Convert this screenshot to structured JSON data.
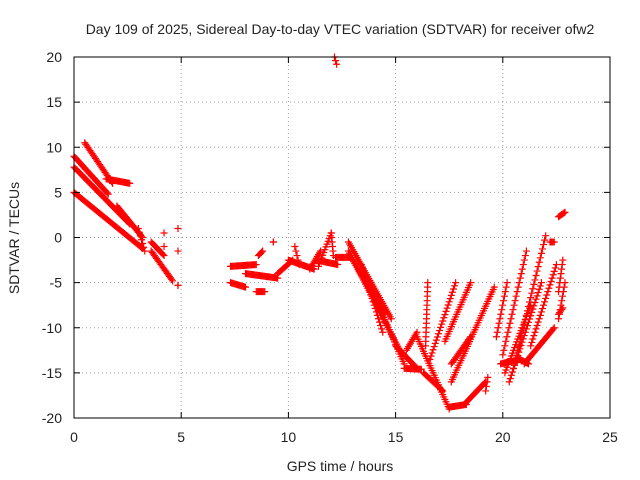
{
  "chart_data": {
    "type": "scatter",
    "title": "Day 109 of 2025, Sidereal Day-to-day VTEC variation (SDTVAR) for receiver ofw2",
    "xlabel": "GPS time / hours",
    "ylabel": "SDTVAR / TECUs",
    "xlim": [
      0,
      25
    ],
    "ylim": [
      -20,
      20
    ],
    "xticks": [
      0,
      5,
      10,
      15,
      20,
      25
    ],
    "yticks": [
      -20,
      -15,
      -10,
      -5,
      0,
      5,
      10,
      15,
      20
    ],
    "grid": true,
    "marker": "+",
    "color": "#ff0000",
    "segments": [
      {
        "from": [
          0.0,
          9.0
        ],
        "to": [
          1.6,
          4.8
        ],
        "step": 0.05
      },
      {
        "from": [
          0.0,
          5.0
        ],
        "to": [
          3.2,
          -1.2
        ],
        "step": 0.05
      },
      {
        "from": [
          0.0,
          7.8
        ],
        "to": [
          2.6,
          1.5
        ],
        "step": 0.05
      },
      {
        "from": [
          0.5,
          10.5
        ],
        "to": [
          1.8,
          6.0
        ],
        "step": 0.05
      },
      {
        "from": [
          1.5,
          6.5
        ],
        "to": [
          2.6,
          6.0
        ],
        "step": 0.05
      },
      {
        "from": [
          2.0,
          3.5
        ],
        "to": [
          3.2,
          0.0
        ],
        "step": 0.05
      },
      {
        "from": [
          3.0,
          1.0
        ],
        "to": [
          3.3,
          -1.5
        ],
        "step": 0.05
      },
      {
        "from": [
          3.6,
          -0.5
        ],
        "to": [
          4.2,
          -2.0
        ],
        "step": 0.05
      },
      {
        "from": [
          3.6,
          -1.5
        ],
        "to": [
          4.6,
          -4.8
        ],
        "step": 0.05
      },
      {
        "from": [
          4.2,
          -1.0
        ],
        "to": [
          4.2,
          0.5
        ],
        "step": 0.25
      },
      {
        "from": [
          4.85,
          1.0
        ],
        "to": [
          4.85,
          -1.5
        ],
        "step": 0.25
      },
      {
        "from": [
          4.85,
          -5.3
        ],
        "to": [
          4.85,
          -5.3
        ],
        "step": 0.1
      },
      {
        "from": [
          7.3,
          -3.2
        ],
        "to": [
          8.5,
          -3.0
        ],
        "step": 0.05
      },
      {
        "from": [
          7.3,
          -5.0
        ],
        "to": [
          8.0,
          -5.5
        ],
        "step": 0.05
      },
      {
        "from": [
          8.0,
          -4.0
        ],
        "to": [
          9.5,
          -4.5
        ],
        "step": 0.05
      },
      {
        "from": [
          8.5,
          -6.0
        ],
        "to": [
          8.9,
          -6.0
        ],
        "step": 0.05
      },
      {
        "from": [
          8.6,
          -2.0
        ],
        "to": [
          8.8,
          -1.5
        ],
        "step": 0.05
      },
      {
        "from": [
          9.3,
          -0.5
        ],
        "to": [
          9.3,
          -0.5
        ],
        "step": 0.1
      },
      {
        "from": [
          9.5,
          -4.0
        ],
        "to": [
          10.2,
          -2.5
        ],
        "step": 0.05
      },
      {
        "from": [
          10.0,
          -2.5
        ],
        "to": [
          11.2,
          -3.5
        ],
        "step": 0.05
      },
      {
        "from": [
          10.3,
          -1.0
        ],
        "to": [
          10.5,
          -3.0
        ],
        "step": 0.05
      },
      {
        "from": [
          11.0,
          -3.5
        ],
        "to": [
          11.5,
          -1.5
        ],
        "step": 0.05
      },
      {
        "from": [
          11.3,
          -2.5
        ],
        "to": [
          12.3,
          -3.0
        ],
        "step": 0.05
      },
      {
        "from": [
          11.4,
          -3.2
        ],
        "to": [
          12.0,
          0.5
        ],
        "step": 0.05
      },
      {
        "from": [
          12.0,
          0.5
        ],
        "to": [
          12.1,
          -2.0
        ],
        "step": 0.05
      },
      {
        "from": [
          12.15,
          20.0
        ],
        "to": [
          12.25,
          19.2
        ],
        "step": 0.05
      },
      {
        "from": [
          12.2,
          -2.2
        ],
        "to": [
          12.9,
          -2.2
        ],
        "step": 0.05
      },
      {
        "from": [
          12.8,
          -0.5
        ],
        "to": [
          14.8,
          -9.0
        ],
        "step": 0.05
      },
      {
        "from": [
          12.8,
          -1.5
        ],
        "to": [
          15.2,
          -12.5
        ],
        "step": 0.05
      },
      {
        "from": [
          13.0,
          -2.5
        ],
        "to": [
          14.5,
          -8.5
        ],
        "step": 0.05
      },
      {
        "from": [
          13.4,
          -3.0
        ],
        "to": [
          14.4,
          -10.5
        ],
        "step": 0.05
      },
      {
        "from": [
          14.2,
          -7.5
        ],
        "to": [
          15.4,
          -14.0
        ],
        "step": 0.05
      },
      {
        "from": [
          15.0,
          -12.0
        ],
        "to": [
          16.0,
          -14.5
        ],
        "step": 0.05
      },
      {
        "from": [
          15.5,
          -12.5
        ],
        "to": [
          16.0,
          -10.5
        ],
        "step": 0.05
      },
      {
        "from": [
          15.4,
          -14.5
        ],
        "to": [
          16.2,
          -14.6
        ],
        "step": 0.05
      },
      {
        "from": [
          16.0,
          -11.0
        ],
        "to": [
          17.5,
          -19.0
        ],
        "step": 0.05
      },
      {
        "from": [
          16.3,
          -15.0
        ],
        "to": [
          17.2,
          -17.0
        ],
        "step": 0.05
      },
      {
        "from": [
          16.4,
          -12.0
        ],
        "to": [
          16.5,
          -5.0
        ],
        "step": 0.05
      },
      {
        "from": [
          16.6,
          -13.5
        ],
        "to": [
          17.8,
          -5.0
        ],
        "step": 0.05
      },
      {
        "from": [
          17.5,
          -18.8
        ],
        "to": [
          18.3,
          -18.5
        ],
        "step": 0.05
      },
      {
        "from": [
          17.3,
          -11.5
        ],
        "to": [
          18.5,
          -5.0
        ],
        "step": 0.05
      },
      {
        "from": [
          17.6,
          -16.0
        ],
        "to": [
          19.6,
          -5.5
        ],
        "step": 0.05
      },
      {
        "from": [
          17.6,
          -14.0
        ],
        "to": [
          18.5,
          -11.0
        ],
        "step": 0.05
      },
      {
        "from": [
          18.2,
          -18.5
        ],
        "to": [
          19.2,
          -16.0
        ],
        "step": 0.05
      },
      {
        "from": [
          19.2,
          -17.0
        ],
        "to": [
          19.3,
          -15.5
        ],
        "step": 0.05
      },
      {
        "from": [
          19.7,
          -11.0
        ],
        "to": [
          20.2,
          -5.0
        ],
        "step": 0.05
      },
      {
        "from": [
          19.9,
          -14.0
        ],
        "to": [
          20.8,
          -13.5
        ],
        "step": 0.05
      },
      {
        "from": [
          20.0,
          -13.0
        ],
        "to": [
          21.1,
          -1.5
        ],
        "step": 0.05
      },
      {
        "from": [
          20.1,
          -15.0
        ],
        "to": [
          21.3,
          -7.5
        ],
        "step": 0.05
      },
      {
        "from": [
          20.3,
          -16.0
        ],
        "to": [
          21.8,
          -5.0
        ],
        "step": 0.05
      },
      {
        "from": [
          20.5,
          -14.5
        ],
        "to": [
          22.0,
          0.2
        ],
        "step": 0.05
      },
      {
        "from": [
          20.8,
          -13.5
        ],
        "to": [
          21.2,
          -14.0
        ],
        "step": 0.05
      },
      {
        "from": [
          21.0,
          -14.0
        ],
        "to": [
          22.4,
          -10.0
        ],
        "step": 0.05
      },
      {
        "from": [
          21.3,
          -12.0
        ],
        "to": [
          22.5,
          -3.0
        ],
        "step": 0.05
      },
      {
        "from": [
          22.2,
          -0.5
        ],
        "to": [
          22.4,
          -0.5
        ],
        "step": 0.05
      },
      {
        "from": [
          22.6,
          -6.0
        ],
        "to": [
          22.8,
          -2.5
        ],
        "step": 0.05
      },
      {
        "from": [
          22.6,
          -9.0
        ],
        "to": [
          22.9,
          -5.0
        ],
        "step": 0.05
      },
      {
        "from": [
          22.6,
          -8.5
        ],
        "to": [
          22.8,
          -7.8
        ],
        "step": 0.05
      },
      {
        "from": [
          22.6,
          2.3
        ],
        "to": [
          22.9,
          2.8
        ],
        "step": 0.05
      }
    ]
  }
}
